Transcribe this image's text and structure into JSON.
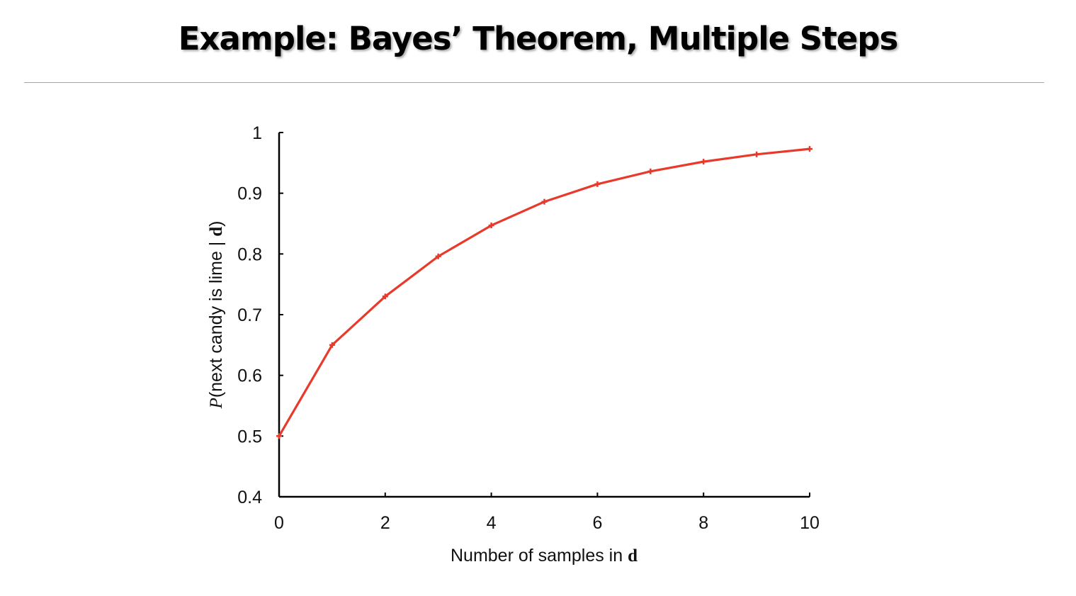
{
  "slide": {
    "title": "Example: Bayes’ Theorem, Multiple Steps"
  },
  "chart_data": {
    "type": "line",
    "x": [
      0,
      1,
      2,
      3,
      4,
      5,
      6,
      7,
      8,
      9,
      10
    ],
    "series": [
      {
        "values": [
          0.5,
          0.65,
          0.73,
          0.796,
          0.847,
          0.886,
          0.915,
          0.936,
          0.952,
          0.964,
          0.973
        ]
      }
    ],
    "xlabel": {
      "prefix": "Number of samples in ",
      "var": "d"
    },
    "ylabel": {
      "var": "P",
      "body": "(next candy is lime | ",
      "bold_var": "d",
      "suffix": ")"
    },
    "xticks": [
      0,
      2,
      4,
      6,
      8,
      10
    ],
    "yticks": [
      0.4,
      0.5,
      0.6,
      0.7,
      0.8,
      0.9,
      1
    ],
    "ytick_labels": [
      "0.4",
      "0.5",
      "0.6",
      "0.7",
      "0.8",
      "0.9",
      "1"
    ],
    "xlim": [
      0,
      10
    ],
    "ylim": [
      0.4,
      1
    ],
    "grid": false,
    "line_color": "#e8392b"
  }
}
